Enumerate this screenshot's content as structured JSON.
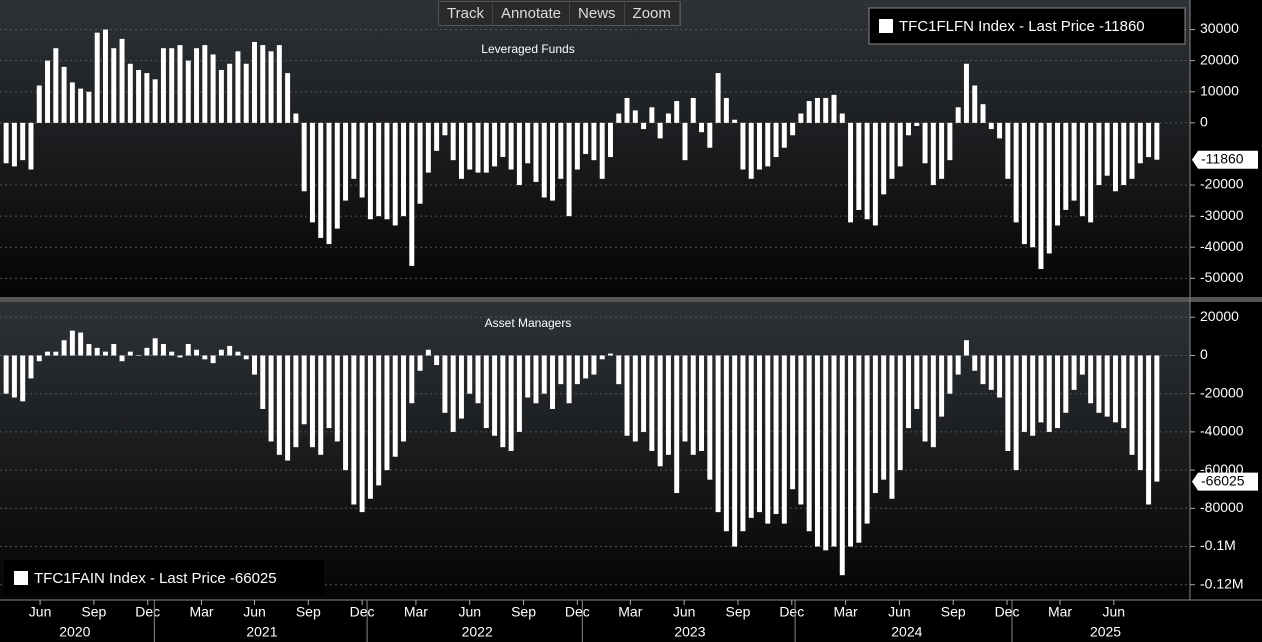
{
  "toolbar": [
    "Track",
    "Annotate",
    "News",
    "Zoom"
  ],
  "chart_data": [
    {
      "type": "bar",
      "title": "Leveraged Funds",
      "legend": "TFC1FLFN Index - Last Price -11860",
      "legend_corner": "upper right",
      "color": "#ffffff",
      "grid": true,
      "ylim": [
        -56000,
        39500
      ],
      "yticks": [
        30000,
        20000,
        10000,
        0,
        -20000,
        -30000,
        -40000,
        -50000
      ],
      "xlim": [
        -0.5,
        139.5
      ],
      "values": [
        -13000,
        -14000,
        -12000,
        -15000,
        12000,
        20000,
        24000,
        18000,
        13000,
        11000,
        10000,
        29000,
        30000,
        24000,
        27000,
        19000,
        17000,
        16000,
        14000,
        24000,
        24000,
        25000,
        20000,
        24000,
        25000,
        22000,
        17000,
        19000,
        23000,
        19000,
        26000,
        25000,
        23000,
        25000,
        16000,
        3000,
        -22000,
        -32000,
        -37000,
        -39000,
        -34000,
        -25000,
        -18000,
        -24000,
        -31000,
        -30000,
        -31000,
        -33000,
        -30000,
        -46000,
        -26000,
        -16000,
        -9000,
        -4000,
        -12000,
        -18000,
        -15000,
        -16000,
        -16000,
        -14000,
        -11000,
        -15000,
        -20000,
        -13000,
        -19000,
        -24000,
        -25000,
        -18000,
        -30000,
        -15000,
        -10000,
        -12000,
        -18000,
        -11000,
        3000,
        8000,
        4000,
        -2000,
        5000,
        -5000,
        3000,
        7000,
        -12000,
        8000,
        -3000,
        -8000,
        16000,
        8000,
        1000,
        -15000,
        -18000,
        -15000,
        -14000,
        -11000,
        -8000,
        -4000,
        3000,
        7000,
        8000,
        8000,
        9000,
        3000,
        -32000,
        -28000,
        -31000,
        -33000,
        -23000,
        -18000,
        -14000,
        -4000,
        -1000,
        -13000,
        -20000,
        -18000,
        -12000,
        5000,
        19000,
        12000,
        6000,
        -2000,
        -5000,
        -18000,
        -32000,
        -39000,
        -40000,
        -47000,
        -42000,
        -33000,
        -28000,
        -25000,
        -30000,
        -32000,
        -20000,
        -17000,
        -22000,
        -20000,
        -18000,
        -13000,
        -11000,
        -11860
      ]
    },
    {
      "type": "bar",
      "title": "Asset Managers",
      "legend": "TFC1FAIN Index - Last Price -66025",
      "legend_corner": "lower left",
      "color": "#ffffff",
      "grid": true,
      "ylim": [
        -128000,
        28000
      ],
      "yticks": [
        20000,
        0,
        -20000,
        -40000,
        -60000,
        -80000,
        {
          "value": -100000,
          "label": "-0.1M"
        },
        {
          "value": -120000,
          "label": "-0.12M"
        }
      ],
      "xlim": [
        -0.5,
        139.5
      ],
      "xticks": [
        {
          "value": 4.1,
          "label": "Jun"
        },
        {
          "value": 10.6,
          "label": "Sep"
        },
        {
          "value": 17.1,
          "label": "Dec"
        },
        {
          "value": 23.6,
          "label": "Mar"
        },
        {
          "value": 30.0,
          "label": "Jun"
        },
        {
          "value": 36.5,
          "label": "Sep"
        },
        {
          "value": 43.0,
          "label": "Dec"
        },
        {
          "value": 49.5,
          "label": "Mar"
        },
        {
          "value": 56.0,
          "label": "Jun"
        },
        {
          "value": 62.5,
          "label": "Sep"
        },
        {
          "value": 69.0,
          "label": "Dec"
        },
        {
          "value": 75.4,
          "label": "Mar"
        },
        {
          "value": 81.9,
          "label": "Jun"
        },
        {
          "value": 88.4,
          "label": "Sep"
        },
        {
          "value": 94.9,
          "label": "Dec"
        },
        {
          "value": 101.4,
          "label": "Mar"
        },
        {
          "value": 107.9,
          "label": "Jun"
        },
        {
          "value": 114.4,
          "label": "Sep"
        },
        {
          "value": 120.9,
          "label": "Dec"
        },
        {
          "value": 127.3,
          "label": "Mar"
        },
        {
          "value": 133.8,
          "label": "Jun"
        }
      ],
      "year_ticks": [
        {
          "value": 8.3,
          "label": "2020"
        },
        {
          "value": 30.9,
          "label": "2021"
        },
        {
          "value": 56.9,
          "label": "2022"
        },
        {
          "value": 82.6,
          "label": "2023"
        },
        {
          "value": 108.8,
          "label": "2024"
        },
        {
          "value": 132.8,
          "label": "2025"
        }
      ],
      "values": [
        -20000,
        -22000,
        -24000,
        -12000,
        -3000,
        2000,
        2000,
        8000,
        13000,
        12000,
        6000,
        4000,
        2000,
        6000,
        -3000,
        2000,
        0,
        4000,
        9000,
        6000,
        2000,
        -1000,
        6000,
        3000,
        -2000,
        -4000,
        3000,
        5000,
        2000,
        -2000,
        -10000,
        -28000,
        -45000,
        -52000,
        -55000,
        -48000,
        -36000,
        -48000,
        -52000,
        -38000,
        -45000,
        -60000,
        -78000,
        -82000,
        -75000,
        -68000,
        -60000,
        -53000,
        -45000,
        -25000,
        -8000,
        3000,
        -5000,
        -30000,
        -40000,
        -33000,
        -20000,
        -25000,
        -38000,
        -42000,
        -48000,
        -50000,
        -40000,
        -22000,
        -25000,
        -20000,
        -28000,
        -15000,
        -25000,
        -15000,
        -12000,
        -10000,
        -2000,
        1000,
        -15000,
        -42000,
        -45000,
        -40000,
        -50000,
        -58000,
        -52000,
        -72000,
        -45000,
        -52000,
        -50000,
        -65000,
        -82000,
        -92000,
        -100000,
        -92000,
        -85000,
        -82000,
        -88000,
        -83000,
        -88000,
        -70000,
        -78000,
        -92000,
        -100000,
        -102000,
        -100000,
        -115000,
        -100000,
        -98000,
        -88000,
        -72000,
        -65000,
        -75000,
        -60000,
        -38000,
        -28000,
        -45000,
        -48000,
        -32000,
        -20000,
        -10000,
        8000,
        -8000,
        -15000,
        -18000,
        -22000,
        -50000,
        -60000,
        -40000,
        -42000,
        -35000,
        -40000,
        -38000,
        -30000,
        -18000,
        -10000,
        -25000,
        -30000,
        -32000,
        -35000,
        -38000,
        -52000,
        -60000,
        -78000,
        -66025
      ]
    }
  ]
}
